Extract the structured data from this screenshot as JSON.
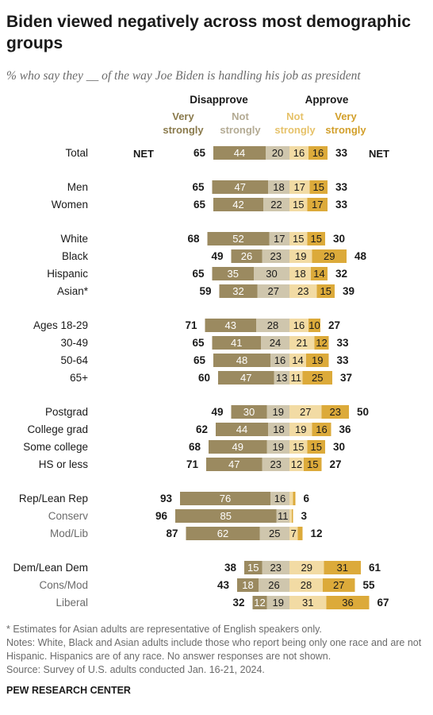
{
  "title": "Biden viewed negatively across most demographic groups",
  "subtitle": "% who say they __ of the way Joe Biden is handling his job as president",
  "header": {
    "disapprove": "Disapprove",
    "approve": "Approve",
    "very_strongly_dis": [
      "Very",
      "strongly"
    ],
    "not_strongly_dis": [
      "Not",
      "strongly"
    ],
    "not_strongly_app": [
      "Not",
      "strongly"
    ],
    "very_strongly_app": [
      "Very",
      "strongly"
    ],
    "net_left": "NET",
    "net_right": "NET"
  },
  "colors": {
    "dis_very": "#9b8a60",
    "dis_not": "#cfc6ad",
    "app_not": "#f2dba4",
    "app_very": "#dcaa3a",
    "dis_very_text": "#8a7a4c",
    "dis_not_text": "#b3aa93",
    "app_not_text": "#e6c26a",
    "app_very_text": "#d29f2a"
  },
  "chart_data": {
    "type": "bar",
    "orientation": "horizontal diverging stacked",
    "series": [
      {
        "name": "Disapprove - Very strongly"
      },
      {
        "name": "Disapprove - Not strongly"
      },
      {
        "name": "Approve - Not strongly"
      },
      {
        "name": "Approve - Very strongly"
      }
    ],
    "groups": [
      {
        "rows": [
          {
            "label": "Total",
            "net_dis": "65",
            "dis_very": 44,
            "dis_not": 20,
            "app_not": 16,
            "app_very": 16,
            "net_app": "33"
          }
        ]
      },
      {
        "rows": [
          {
            "label": "Men",
            "net_dis": "65",
            "dis_very": 47,
            "dis_not": 18,
            "app_not": 17,
            "app_very": 15,
            "net_app": "33"
          },
          {
            "label": "Women",
            "net_dis": "65",
            "dis_very": 42,
            "dis_not": 22,
            "app_not": 15,
            "app_very": 17,
            "net_app": "33"
          }
        ]
      },
      {
        "rows": [
          {
            "label": "White",
            "net_dis": "68",
            "dis_very": 52,
            "dis_not": 17,
            "app_not": 15,
            "app_very": 15,
            "net_app": "30"
          },
          {
            "label": "Black",
            "net_dis": "49",
            "dis_very": 26,
            "dis_not": 23,
            "app_not": 19,
            "app_very": 29,
            "net_app": "48"
          },
          {
            "label": "Hispanic",
            "net_dis": "65",
            "dis_very": 35,
            "dis_not": 30,
            "app_not": 18,
            "app_very": 14,
            "net_app": "32"
          },
          {
            "label": "Asian*",
            "net_dis": "59",
            "dis_very": 32,
            "dis_not": 27,
            "app_not": 23,
            "app_very": 15,
            "net_app": "39"
          }
        ]
      },
      {
        "rows": [
          {
            "label": "Ages 18-29",
            "net_dis": "71",
            "dis_very": 43,
            "dis_not": 28,
            "app_not": 16,
            "app_very": 10,
            "net_app": "27"
          },
          {
            "label": "30-49",
            "net_dis": "65",
            "dis_very": 41,
            "dis_not": 24,
            "app_not": 21,
            "app_very": 12,
            "net_app": "33"
          },
          {
            "label": "50-64",
            "net_dis": "65",
            "dis_very": 48,
            "dis_not": 16,
            "app_not": 14,
            "app_very": 19,
            "net_app": "33"
          },
          {
            "label": "65+",
            "net_dis": "60",
            "dis_very": 47,
            "dis_not": 13,
            "app_not": 11,
            "app_very": 25,
            "net_app": "37"
          }
        ]
      },
      {
        "rows": [
          {
            "label": "Postgrad",
            "net_dis": "49",
            "dis_very": 30,
            "dis_not": 19,
            "app_not": 27,
            "app_very": 23,
            "net_app": "50"
          },
          {
            "label": "College grad",
            "net_dis": "62",
            "dis_very": 44,
            "dis_not": 18,
            "app_not": 19,
            "app_very": 16,
            "net_app": "36"
          },
          {
            "label": "Some college",
            "net_dis": "68",
            "dis_very": 49,
            "dis_not": 19,
            "app_not": 15,
            "app_very": 15,
            "net_app": "30"
          },
          {
            "label": "HS or less",
            "net_dis": "71",
            "dis_very": 47,
            "dis_not": 23,
            "app_not": 12,
            "app_very": 15,
            "net_app": "27"
          }
        ]
      },
      {
        "rows": [
          {
            "label": "Rep/Lean Rep",
            "net_dis": "93",
            "dis_very": 76,
            "dis_not": 16,
            "app_not": 3,
            "app_very": 2,
            "net_app": "6",
            "hide": [
              "app_not",
              "app_very"
            ]
          },
          {
            "label": "Conserv",
            "sub": true,
            "net_dis": "96",
            "dis_very": 85,
            "dis_not": 11,
            "app_not": 2,
            "app_very": 1,
            "net_app": "3",
            "hide": [
              "app_not",
              "app_very"
            ]
          },
          {
            "label": "Mod/Lib",
            "sub": true,
            "net_dis": "87",
            "dis_very": 62,
            "dis_not": 25,
            "app_not": 7,
            "app_very": 4,
            "net_app": "12",
            "hide": [
              "app_very"
            ]
          }
        ]
      },
      {
        "rows": [
          {
            "label": "Dem/Lean Dem",
            "net_dis": "38",
            "dis_very": 15,
            "dis_not": 23,
            "app_not": 29,
            "app_very": 31,
            "net_app": "61"
          },
          {
            "label": "Cons/Mod",
            "sub": true,
            "net_dis": "43",
            "dis_very": 18,
            "dis_not": 26,
            "app_not": 28,
            "app_very": 27,
            "net_app": "55"
          },
          {
            "label": "Liberal",
            "sub": true,
            "net_dis": "32",
            "dis_very": 12,
            "dis_not": 19,
            "app_not": 31,
            "app_very": 36,
            "net_app": "67"
          }
        ]
      }
    ]
  },
  "footnotes": {
    "asian": "* Estimates for Asian adults are representative of English speakers only.",
    "notes": "Notes: White, Black and Asian adults include those who report being only one race and are not Hispanic. Hispanics are of any race. No answer responses are not shown.",
    "source": "Source: Survey of U.S. adults conducted Jan. 16-21, 2024."
  },
  "org": "PEW RESEARCH CENTER"
}
